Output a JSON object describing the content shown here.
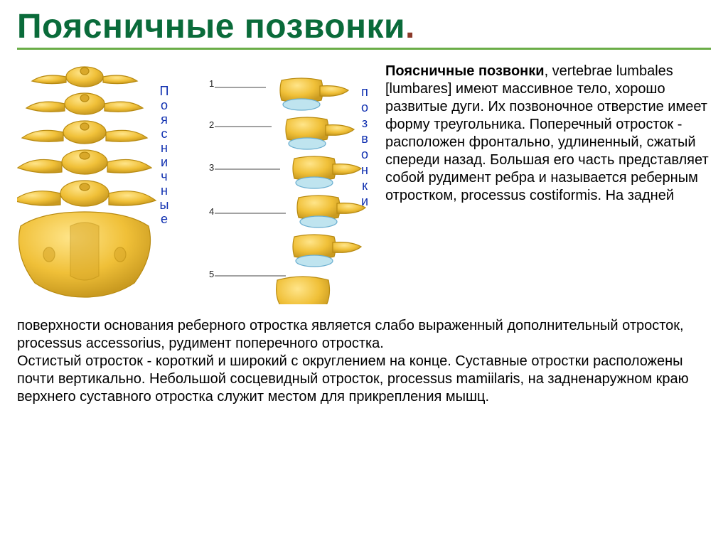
{
  "title_text": "Поясничные позвонки",
  "title_color": "#0a6b3a",
  "title_rule_color": "#6aad47",
  "dot_color": "#8b3a2a",
  "right_para_bold": "Поясничные позвонки",
  "right_para_rest": ", vertebrae lumbales [lumbares] имеют массивное тело, хорошо развитые дуги. Их позвоночное отверстие имеет форму треугольника. Поперечный отросток - расположен фронтально, удлиненный, сжатый спереди назад. Большая его часть представляет собой рудимент ребра и называется реберным отростком, processus costiformis. На задней",
  "bottom_para": "поверхности основания реберного отростка является слабо выраженный дополнительный отросток, processus accessorius, рудимент поперечного отростка.\nОстистый отросток - короткий и широкий с округлением на конце. Суставные отростки расположены почти вертикально. Небольшой сосцевидный отросток, processus mamiilaris, на задненаружном краю верхнего суставного отростка служит местом для прикрепления мышц.",
  "figure": {
    "bone_fill": "#f0c038",
    "bone_edge": "#b88a10",
    "bone_shadow": "#c99a20",
    "disc_fill": "#bfe4ef",
    "disc_edge": "#6aaed0",
    "vertical_letters_left": [
      "П",
      "о",
      "я",
      "с",
      "н",
      "и",
      "ч",
      "н",
      "ы",
      "е"
    ],
    "vertical_letters_right": [
      "п",
      "о",
      "з",
      "в",
      "о",
      "н",
      "к",
      "и"
    ],
    "numbers": [
      "1",
      "2",
      "3",
      "4",
      "5"
    ]
  },
  "text_color": "#000000",
  "label_color": "#1030b0"
}
